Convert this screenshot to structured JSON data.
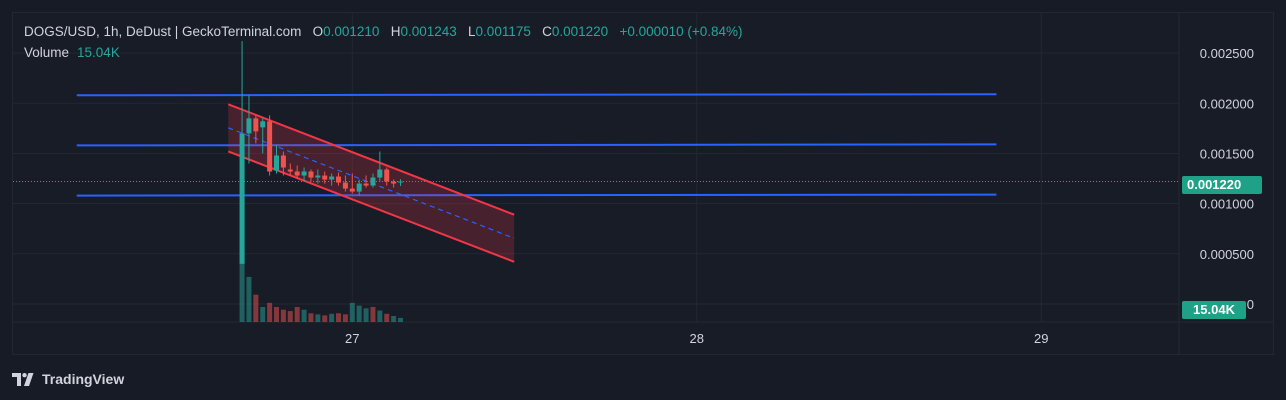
{
  "legend": {
    "symbol": "DOGS/USD, 1h, DeDust | GeckoTerminal.com",
    "open_label": "O",
    "open_value": "0.001210",
    "high_label": "H",
    "high_value": "0.001243",
    "low_label": "L",
    "low_value": "0.001175",
    "close_label": "C",
    "close_value": "0.001220",
    "change": "+0.000010 (+0.84%)",
    "volume_label": "Volume",
    "volume_value": "15.04K"
  },
  "badges": {
    "last_price": "0.001220",
    "last_volume": "15.04K"
  },
  "brand": {
    "name": "TradingView"
  },
  "colors": {
    "background": "#171b25",
    "grid": "#232733",
    "up": "#26a69a",
    "down": "#ef5350",
    "channel": "#f23645",
    "hline": "#2962ff",
    "text": "#d1d4dc"
  },
  "chart_data": {
    "type": "candlestick",
    "title": "DOGS/USD, 1h, DeDust | GeckoTerminal.com",
    "y_ticks": [
      "0.002500",
      "0.002000",
      "0.001500",
      "0.001000",
      "0.000500",
      "0"
    ],
    "y_tick_values": [
      0.0025,
      0.002,
      0.0015,
      0.001,
      0.0005,
      0
    ],
    "ylim": [
      -0.00018,
      0.0029
    ],
    "x_ticks": [
      "27",
      "28",
      "29"
    ],
    "x_tick_days": [
      27,
      28,
      29
    ],
    "xlim": [
      26.015,
      29.4
    ],
    "last_price": 0.00122,
    "candles": [
      {
        "t": 26.68,
        "o": 0.0004,
        "h": 0.00262,
        "l": 0.0004,
        "c": 0.0017
      },
      {
        "t": 26.7,
        "o": 0.0017,
        "h": 0.00208,
        "l": 0.0014,
        "c": 0.00185
      },
      {
        "t": 26.72,
        "o": 0.00185,
        "h": 0.00188,
        "l": 0.0016,
        "c": 0.00172
      },
      {
        "t": 26.74,
        "o": 0.00176,
        "h": 0.00185,
        "l": 0.0015,
        "c": 0.00182
      },
      {
        "t": 26.76,
        "o": 0.00182,
        "h": 0.00188,
        "l": 0.00128,
        "c": 0.00132
      },
      {
        "t": 26.78,
        "o": 0.00133,
        "h": 0.00158,
        "l": 0.0013,
        "c": 0.00148
      },
      {
        "t": 26.8,
        "o": 0.00148,
        "h": 0.00152,
        "l": 0.00128,
        "c": 0.00136
      },
      {
        "t": 26.82,
        "o": 0.00134,
        "h": 0.0014,
        "l": 0.00128,
        "c": 0.00132
      },
      {
        "t": 26.84,
        "o": 0.00132,
        "h": 0.00138,
        "l": 0.00125,
        "c": 0.00128
      },
      {
        "t": 26.86,
        "o": 0.00128,
        "h": 0.00136,
        "l": 0.00122,
        "c": 0.00132
      },
      {
        "t": 26.88,
        "o": 0.00132,
        "h": 0.00134,
        "l": 0.00122,
        "c": 0.00126
      },
      {
        "t": 26.9,
        "o": 0.00126,
        "h": 0.00134,
        "l": 0.0012,
        "c": 0.00128
      },
      {
        "t": 26.92,
        "o": 0.00128,
        "h": 0.00132,
        "l": 0.0012,
        "c": 0.00124
      },
      {
        "t": 26.94,
        "o": 0.00124,
        "h": 0.0013,
        "l": 0.00118,
        "c": 0.00127
      },
      {
        "t": 26.96,
        "o": 0.00127,
        "h": 0.00131,
        "l": 0.00118,
        "c": 0.00121
      },
      {
        "t": 26.98,
        "o": 0.00121,
        "h": 0.00128,
        "l": 0.00112,
        "c": 0.00115
      },
      {
        "t": 27.0,
        "o": 0.00115,
        "h": 0.0013,
        "l": 0.0011,
        "c": 0.00112
      },
      {
        "t": 27.02,
        "o": 0.00112,
        "h": 0.00124,
        "l": 0.00108,
        "c": 0.0012
      },
      {
        "t": 27.04,
        "o": 0.0012,
        "h": 0.00128,
        "l": 0.00116,
        "c": 0.00118
      },
      {
        "t": 27.06,
        "o": 0.00118,
        "h": 0.0013,
        "l": 0.00116,
        "c": 0.00126
      },
      {
        "t": 27.08,
        "o": 0.00126,
        "h": 0.00152,
        "l": 0.00122,
        "c": 0.00134
      },
      {
        "t": 27.1,
        "o": 0.00134,
        "h": 0.00136,
        "l": 0.00118,
        "c": 0.00122
      },
      {
        "t": 27.12,
        "o": 0.00122,
        "h": 0.00124,
        "l": 0.00116,
        "c": 0.0012
      },
      {
        "t": 27.14,
        "o": 0.00121,
        "h": 0.001243,
        "l": 0.001175,
        "c": 0.00122
      }
    ],
    "volumes": [
      {
        "t": 26.68,
        "v": 290000,
        "dir": "up"
      },
      {
        "t": 26.7,
        "v": 165000,
        "dir": "up"
      },
      {
        "t": 26.72,
        "v": 100000,
        "dir": "down"
      },
      {
        "t": 26.74,
        "v": 55000,
        "dir": "up"
      },
      {
        "t": 26.76,
        "v": 70000,
        "dir": "down"
      },
      {
        "t": 26.78,
        "v": 55000,
        "dir": "down"
      },
      {
        "t": 26.8,
        "v": 45000,
        "dir": "down"
      },
      {
        "t": 26.82,
        "v": 40000,
        "dir": "down"
      },
      {
        "t": 26.84,
        "v": 55000,
        "dir": "down"
      },
      {
        "t": 26.86,
        "v": 45000,
        "dir": "up"
      },
      {
        "t": 26.88,
        "v": 32000,
        "dir": "down"
      },
      {
        "t": 26.9,
        "v": 28000,
        "dir": "up"
      },
      {
        "t": 26.92,
        "v": 24000,
        "dir": "down"
      },
      {
        "t": 26.94,
        "v": 30000,
        "dir": "up"
      },
      {
        "t": 26.96,
        "v": 32000,
        "dir": "down"
      },
      {
        "t": 26.98,
        "v": 28000,
        "dir": "down"
      },
      {
        "t": 27.0,
        "v": 70000,
        "dir": "up"
      },
      {
        "t": 27.02,
        "v": 60000,
        "dir": "up"
      },
      {
        "t": 27.04,
        "v": 50000,
        "dir": "up"
      },
      {
        "t": 27.06,
        "v": 55000,
        "dir": "down"
      },
      {
        "t": 27.08,
        "v": 42000,
        "dir": "up"
      },
      {
        "t": 27.1,
        "v": 30000,
        "dir": "down"
      },
      {
        "t": 27.12,
        "v": 22000,
        "dir": "up"
      },
      {
        "t": 27.14,
        "v": 15040,
        "dir": "up"
      }
    ],
    "volume_max": 300000,
    "horizontal_lines": [
      {
        "t1": 26.2,
        "t2": 28.87,
        "p1": 0.00208,
        "p2": 0.00209
      },
      {
        "t1": 26.2,
        "t2": 28.87,
        "p1": 0.00158,
        "p2": 0.00159
      },
      {
        "t1": 26.2,
        "t2": 28.87,
        "p1": 0.00108,
        "p2": 0.00109
      }
    ],
    "channel": {
      "upper": {
        "t1": 26.64,
        "p1": 0.00199,
        "t2": 27.47,
        "p2": 0.00089
      },
      "lower": {
        "t1": 26.64,
        "p1": 0.00152,
        "t2": 27.47,
        "p2": 0.00042
      },
      "mid": {
        "t1": 26.64,
        "p1": 0.001755,
        "t2": 27.47,
        "p2": 0.000655
      }
    }
  }
}
